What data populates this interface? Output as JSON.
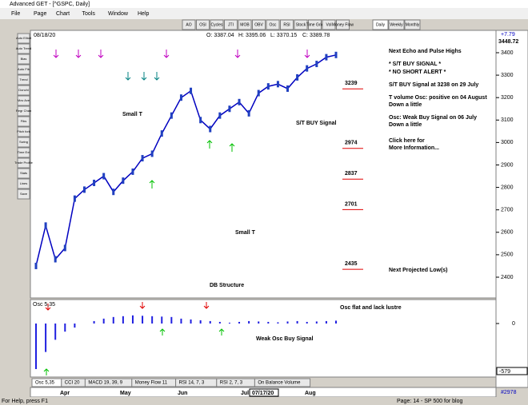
{
  "window": {
    "title": "Advanced GET - [^GSPC, Daily]"
  },
  "menu": [
    "File",
    "Page",
    "Chart",
    "Tools",
    "Window",
    "Help"
  ],
  "toolbar": [
    "AO",
    "OSI",
    "Cycles",
    "JTI",
    "MOB",
    "OBV",
    "Osc",
    "RSI",
    "Stock",
    "Time Grid",
    "Vol",
    "Money Flow"
  ],
  "periods": [
    "Daily",
    "Weekly",
    "Monthly"
  ],
  "left_tools": [
    "Auto Elliott",
    "Auto Trend",
    "Bias",
    "Auto Fib",
    "Trend",
    "Donchi",
    "Mov Ave",
    "Regr Chan",
    "Fibs",
    "Pitch fork",
    "Swing",
    "Time Ext",
    "Trade Profile",
    "Stats",
    "Lines",
    "Save"
  ],
  "chart": {
    "date": "08/18/20",
    "ohlc": [
      "O: 3387.04",
      "H: 3395.06",
      "L: 3370.15",
      "C: 3389.78"
    ],
    "last_price": "3448.72",
    "change": "+7.79",
    "ylim": [
      2311,
      3464
    ],
    "yticks": [
      2400,
      2500,
      2600,
      2700,
      2800,
      2900,
      3000,
      3100,
      3200,
      3300,
      3400
    ],
    "close": [
      2450,
      2630,
      2480,
      2530,
      2750,
      2790,
      2820,
      2850,
      2780,
      2830,
      2870,
      2930,
      2950,
      3040,
      3120,
      3200,
      3230,
      3100,
      3060,
      3120,
      3150,
      3180,
      3130,
      3220,
      3250,
      3260,
      3240,
      3290,
      3330,
      3350,
      3380,
      3390
    ],
    "levels": [
      3239,
      2974,
      2837,
      2701,
      2435
    ],
    "notes": [
      "Next Echo and Pulse Highs",
      "* S/T BUY SIGNAL *",
      "* NO SHORT ALERT *",
      "S/T BUY Signal at 3238 on 29 July",
      "T volume Osc: positive on 04 August",
      "Down a little",
      "Osc: Weak Buy Signal on 06 July",
      "Down a little",
      "Click here for",
      "More Information...",
      "Next Projected Low(s)"
    ],
    "chart_labels": [
      "Small T",
      "S/T BUY Signal",
      "Small T",
      "DB Structure"
    ],
    "dates": [
      "Apr",
      "May",
      "Jun",
      "Jul",
      "07/17/20",
      "Aug"
    ]
  },
  "oscillator": {
    "label": "Osc 5,35",
    "ylim": [
      -658,
      265
    ],
    "yticks": [
      0
    ],
    "values": [
      -560,
      -350,
      -200,
      -100,
      -50,
      0,
      30,
      60,
      80,
      90,
      100,
      95,
      90,
      85,
      80,
      60,
      50,
      40,
      30,
      20,
      10,
      20,
      30,
      25,
      20,
      15,
      25,
      30,
      20,
      25,
      30,
      35
    ],
    "last": "-579",
    "notes": [
      "Osc flat and lack lustre",
      "Weak Osc Buy Signal"
    ]
  },
  "tabs": [
    "Osc 5,35",
    "CCI 20",
    "MACD 19, 39, 9",
    "Money Flow 11",
    "RSI 14, 7, 3",
    "RSI 2, 7, 3",
    "On Balance Volume"
  ],
  "status": {
    "help": "For Help, press F1",
    "page": "Page: 14 - SP 500 for blog",
    "bottom_value": "#2978"
  }
}
